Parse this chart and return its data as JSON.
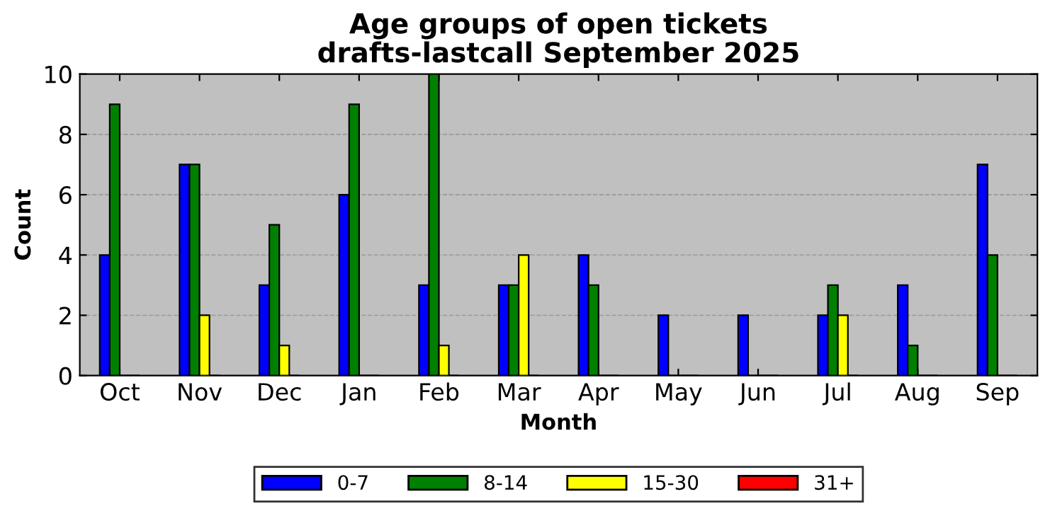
{
  "chart_data": {
    "type": "bar",
    "title": "Age groups of open tickets\ndrafts-lastcall September 2025",
    "xlabel": "Month",
    "ylabel": "Count",
    "categories": [
      "Oct",
      "Nov",
      "Dec",
      "Jan",
      "Feb",
      "Mar",
      "Apr",
      "May",
      "Jun",
      "Jul",
      "Aug",
      "Sep"
    ],
    "series": [
      {
        "name": "0-7",
        "color": "#0000ff",
        "values": [
          4,
          7,
          3,
          6,
          3,
          3,
          4,
          2,
          2,
          2,
          3,
          7
        ]
      },
      {
        "name": "8-14",
        "color": "#008000",
        "values": [
          9,
          7,
          5,
          9,
          10,
          3,
          3,
          0,
          0,
          3,
          1,
          4
        ]
      },
      {
        "name": "15-30",
        "color": "#ffff00",
        "values": [
          0,
          2,
          1,
          0,
          1,
          4,
          0,
          0,
          0,
          2,
          0,
          0
        ]
      },
      {
        "name": "31+",
        "color": "#ff0000",
        "values": [
          0,
          0,
          0,
          0,
          0,
          0,
          0,
          0,
          0,
          0,
          0,
          0
        ]
      }
    ],
    "ylim": [
      0,
      10
    ],
    "yticks": [
      0,
      2,
      4,
      6,
      8,
      10
    ],
    "grid": "y",
    "legend": "bottom"
  }
}
